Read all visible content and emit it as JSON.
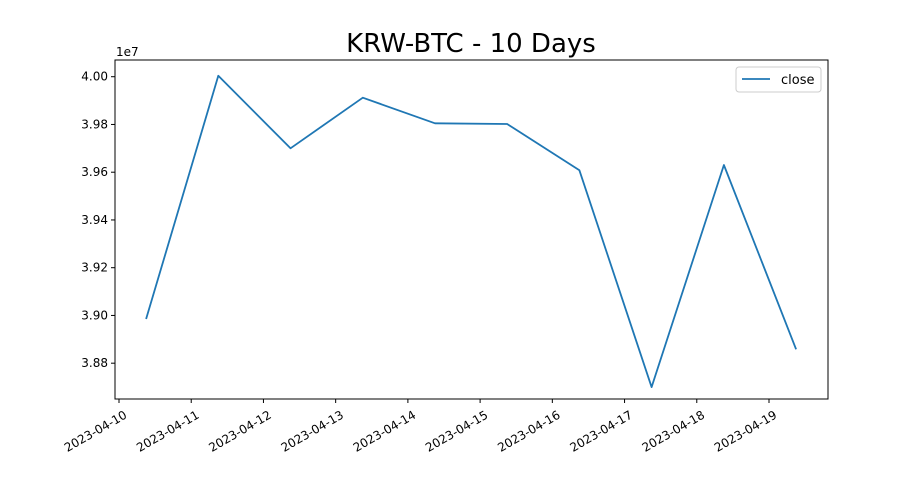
{
  "chart_data": {
    "type": "line",
    "title": "KRW-BTC - 10 Days",
    "xlabel": "",
    "ylabel": "",
    "y_offset_label": "1e7",
    "x_ticks": [
      "2023-04-10",
      "2023-04-11",
      "2023-04-12",
      "2023-04-13",
      "2023-04-14",
      "2023-04-15",
      "2023-04-16",
      "2023-04-17",
      "2023-04-18",
      "2023-04-19"
    ],
    "y_ticks": [
      "3.88",
      "3.90",
      "3.92",
      "3.94",
      "3.96",
      "3.98",
      "4.00"
    ],
    "ylim": [
      38650000,
      40070000
    ],
    "grid": false,
    "legend_position": "top-right",
    "series": [
      {
        "name": "close",
        "color": "#1f77b4",
        "x": [
          "2023-04-10 09:00",
          "2023-04-11 09:00",
          "2023-04-12 09:00",
          "2023-04-13 09:00",
          "2023-04-14 09:00",
          "2023-04-15 09:00",
          "2023-04-16 09:00",
          "2023-04-17 09:00",
          "2023-04-18 09:00",
          "2023-04-19 09:00"
        ],
        "values": [
          38985000,
          40004000,
          39700000,
          39912000,
          39805000,
          39802000,
          39608000,
          38700000,
          39630000,
          38858000
        ]
      }
    ]
  }
}
